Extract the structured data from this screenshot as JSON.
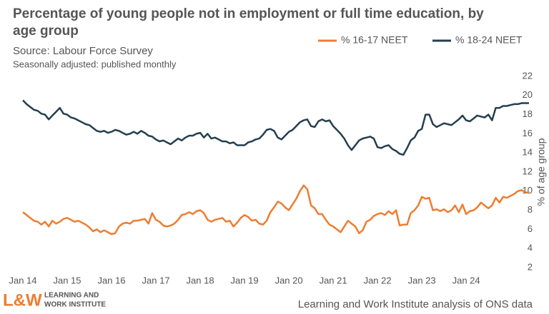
{
  "chart_data": {
    "type": "line",
    "title": "Percentage of young people not in employment or full time education, by age group",
    "subtitle": "Source: Labour Force Survey",
    "note": "Seasonally adjusted: published monthly",
    "y_axis_label": "% of age group",
    "source": "Learning and Work Institute analysis of ONS data",
    "logo": {
      "mark": "L&W",
      "line1": "LEARNING AND",
      "line2": "WORK INSTITUTE"
    },
    "categories": [
      "Jan 14",
      null,
      null,
      null,
      null,
      null,
      null,
      null,
      null,
      null,
      null,
      null,
      "Jan 15",
      null,
      null,
      null,
      null,
      null,
      null,
      null,
      null,
      null,
      null,
      null,
      "Jan 16",
      null,
      null,
      null,
      null,
      null,
      null,
      null,
      null,
      null,
      null,
      null,
      "Jan 17",
      null,
      null,
      null,
      null,
      null,
      null,
      null,
      null,
      null,
      null,
      null,
      "Jan 18",
      null,
      null,
      null,
      null,
      null,
      null,
      null,
      null,
      null,
      null,
      null,
      "Jan 19",
      null,
      null,
      null,
      null,
      null,
      null,
      null,
      null,
      null,
      null,
      null,
      "Jan 20",
      null,
      null,
      null,
      null,
      null,
      null,
      null,
      null,
      null,
      null,
      null,
      "Jan 21",
      null,
      null,
      null,
      null,
      null,
      null,
      null,
      null,
      null,
      null,
      null,
      "Jan 22",
      null,
      null,
      null,
      null,
      null,
      null,
      null,
      null,
      null,
      null,
      null,
      "Jan 23",
      null,
      null,
      null,
      null,
      null,
      null,
      null,
      null,
      null,
      null,
      null,
      "Jan 24",
      null,
      null,
      null,
      null,
      null,
      null,
      null,
      null,
      null,
      null,
      null,
      null,
      null,
      null,
      null,
      null,
      null
    ],
    "series": [
      {
        "name": "% 16-17 NEET",
        "color": "#ed7d31",
        "values": [
          7.8,
          7.5,
          7.2,
          6.9,
          6.8,
          6.5,
          6.8,
          6.3,
          6.9,
          6.6,
          6.8,
          7.1,
          7.2,
          7.0,
          6.8,
          6.9,
          6.7,
          6.5,
          6.2,
          5.8,
          6.0,
          5.7,
          5.9,
          5.7,
          5.5,
          5.6,
          6.3,
          6.6,
          6.7,
          6.6,
          6.9,
          6.9,
          7.0,
          7.1,
          6.6,
          7.7,
          7.0,
          6.8,
          6.4,
          6.3,
          6.4,
          6.6,
          7.0,
          7.5,
          7.6,
          7.8,
          7.6,
          7.9,
          8.0,
          7.7,
          7.0,
          6.8,
          7.0,
          7.1,
          7.2,
          6.8,
          6.9,
          6.3,
          6.7,
          7.2,
          7.5,
          7.3,
          6.9,
          7.0,
          6.6,
          6.5,
          6.9,
          7.8,
          8.3,
          8.9,
          8.7,
          8.3,
          8.0,
          8.6,
          9.2,
          10.0,
          10.6,
          10.2,
          8.5,
          8.2,
          7.6,
          7.6,
          7.0,
          6.5,
          6.3,
          6.0,
          5.7,
          6.3,
          6.9,
          6.6,
          6.3,
          5.6,
          5.9,
          6.8,
          7.0,
          7.4,
          7.6,
          7.7,
          7.5,
          7.9,
          7.6,
          8.0,
          6.4,
          6.5,
          6.5,
          7.7,
          8.0,
          8.5,
          9.4,
          9.2,
          9.3,
          8.0,
          8.1,
          7.9,
          8.1,
          7.8,
          8.0,
          8.5,
          7.8,
          8.6,
          7.6,
          7.9,
          8.0,
          8.3,
          8.8,
          8.5,
          8.2,
          8.5,
          9.3,
          8.8,
          9.4,
          9.3,
          9.5,
          9.7,
          10.0,
          10.1,
          9.9,
          9.8
        ]
      },
      {
        "name": "% 18-24 NEET",
        "color": "#243f4f",
        "values": [
          19.5,
          19.1,
          18.8,
          18.5,
          18.4,
          18.1,
          18.0,
          17.5,
          17.9,
          18.3,
          18.7,
          18.1,
          18.0,
          17.7,
          17.6,
          17.4,
          17.2,
          17.0,
          16.9,
          16.6,
          16.3,
          16.2,
          16.3,
          16.1,
          16.2,
          16.4,
          16.3,
          16.1,
          15.9,
          16.0,
          16.2,
          16.0,
          16.3,
          16.1,
          15.8,
          15.7,
          15.4,
          15.2,
          15.3,
          15.1,
          14.9,
          15.2,
          15.5,
          15.3,
          15.6,
          15.8,
          15.8,
          16.0,
          16.1,
          15.6,
          16.0,
          15.5,
          15.6,
          15.4,
          15.2,
          15.2,
          15.0,
          15.1,
          14.8,
          14.8,
          14.8,
          15.1,
          15.2,
          15.4,
          15.5,
          15.9,
          16.4,
          16.5,
          16.3,
          15.6,
          15.4,
          15.8,
          16.2,
          16.4,
          16.8,
          17.2,
          17.4,
          17.5,
          16.8,
          16.7,
          17.3,
          17.5,
          17.3,
          17.4,
          16.8,
          16.4,
          16.0,
          15.5,
          14.8,
          14.3,
          14.8,
          15.3,
          15.5,
          15.6,
          15.7,
          15.5,
          14.6,
          14.5,
          14.7,
          14.8,
          14.4,
          14.2,
          13.9,
          13.8,
          14.5,
          15.3,
          15.6,
          16.3,
          16.5,
          18.0,
          18.0,
          17.0,
          16.7,
          16.9,
          17.1,
          17.0,
          16.9,
          17.2,
          17.5,
          17.9,
          17.4,
          17.3,
          17.6,
          17.9,
          17.8,
          17.7,
          18.0,
          17.4,
          18.7,
          18.7,
          18.9,
          18.9,
          19.0,
          19.1,
          19.1,
          19.2,
          19.2,
          19.2
        ]
      }
    ],
    "ylim": [
      2,
      22
    ],
    "yticks": [
      2,
      4,
      6,
      8,
      10,
      12,
      14,
      16,
      18,
      20,
      22
    ],
    "grid": false,
    "legend": "top-right"
  }
}
